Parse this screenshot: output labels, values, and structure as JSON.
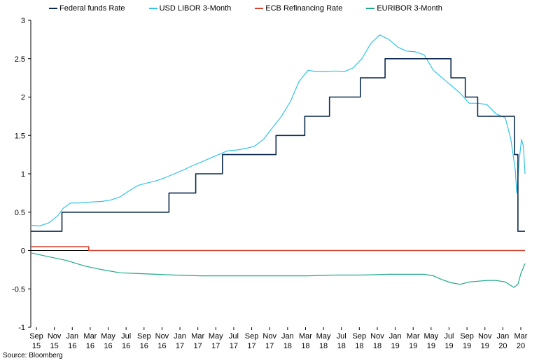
{
  "chart_data": {
    "type": "line",
    "ylim": [
      -1,
      3
    ],
    "yticks": [
      "3",
      "2.5",
      "2",
      "1.5",
      "1",
      "0.5",
      "0",
      "-0.5",
      "-1"
    ],
    "xtick_labels": [
      [
        "Sep",
        "15"
      ],
      [
        "Nov",
        "15"
      ],
      [
        "Jan",
        "16"
      ],
      [
        "Mar",
        "16"
      ],
      [
        "May",
        "16"
      ],
      [
        "Jul",
        "16"
      ],
      [
        "Sep",
        "16"
      ],
      [
        "Nov",
        "16"
      ],
      [
        "Jan",
        "17"
      ],
      [
        "Mar",
        "17"
      ],
      [
        "May",
        "17"
      ],
      [
        "Jul",
        "17"
      ],
      [
        "Sep",
        "17"
      ],
      [
        "Nov",
        "17"
      ],
      [
        "Jan",
        "18"
      ],
      [
        "Mar",
        "18"
      ],
      [
        "May",
        "18"
      ],
      [
        "Jul",
        "18"
      ],
      [
        "Sep",
        "18"
      ],
      [
        "Nov",
        "18"
      ],
      [
        "Jan",
        "19"
      ],
      [
        "Mar",
        "19"
      ],
      [
        "May",
        "19"
      ],
      [
        "Jul",
        "19"
      ],
      [
        "Sep",
        "19"
      ],
      [
        "Nov",
        "19"
      ],
      [
        "Jan",
        "20"
      ],
      [
        "Mar",
        "20"
      ]
    ],
    "legend_position": "top",
    "grid": false,
    "series": [
      {
        "name": "Federal funds Rate",
        "color": "#0b2a4f",
        "step": true,
        "points": [
          [
            "2015-09-01",
            0.25
          ],
          [
            "2015-12-16",
            0.5
          ],
          [
            "2016-12-14",
            0.75
          ],
          [
            "2017-03-15",
            1.0
          ],
          [
            "2017-06-14",
            1.25
          ],
          [
            "2017-12-13",
            1.5
          ],
          [
            "2018-03-21",
            1.75
          ],
          [
            "2018-06-13",
            2.0
          ],
          [
            "2018-09-26",
            2.25
          ],
          [
            "2018-12-19",
            2.5
          ],
          [
            "2019-07-31",
            2.25
          ],
          [
            "2019-09-18",
            2.0
          ],
          [
            "2019-10-30",
            1.75
          ],
          [
            "2020-03-03",
            1.25
          ],
          [
            "2020-03-15",
            0.25
          ],
          [
            "2020-04-08",
            0.25
          ]
        ]
      },
      {
        "name": "USD LIBOR 3-Month",
        "color": "#33c3e8",
        "step": false,
        "points": [
          [
            "2015-09-01",
            0.33
          ],
          [
            "2015-10-01",
            0.32
          ],
          [
            "2015-11-01",
            0.36
          ],
          [
            "2015-12-01",
            0.45
          ],
          [
            "2015-12-20",
            0.55
          ],
          [
            "2016-01-15",
            0.62
          ],
          [
            "2016-02-15",
            0.62
          ],
          [
            "2016-03-15",
            0.63
          ],
          [
            "2016-05-01",
            0.64
          ],
          [
            "2016-06-01",
            0.66
          ],
          [
            "2016-07-01",
            0.7
          ],
          [
            "2016-08-01",
            0.78
          ],
          [
            "2016-09-01",
            0.85
          ],
          [
            "2016-10-01",
            0.88
          ],
          [
            "2016-11-01",
            0.91
          ],
          [
            "2016-12-01",
            0.95
          ],
          [
            "2017-01-01",
            1.0
          ],
          [
            "2017-02-01",
            1.05
          ],
          [
            "2017-03-01",
            1.1
          ],
          [
            "2017-04-01",
            1.15
          ],
          [
            "2017-05-01",
            1.2
          ],
          [
            "2017-06-01",
            1.25
          ],
          [
            "2017-07-01",
            1.3
          ],
          [
            "2017-08-01",
            1.31
          ],
          [
            "2017-09-01",
            1.33
          ],
          [
            "2017-10-01",
            1.36
          ],
          [
            "2017-11-01",
            1.45
          ],
          [
            "2017-12-01",
            1.6
          ],
          [
            "2018-01-01",
            1.75
          ],
          [
            "2018-02-01",
            1.95
          ],
          [
            "2018-03-01",
            2.2
          ],
          [
            "2018-04-01",
            2.35
          ],
          [
            "2018-05-01",
            2.33
          ],
          [
            "2018-06-01",
            2.33
          ],
          [
            "2018-07-01",
            2.34
          ],
          [
            "2018-08-01",
            2.33
          ],
          [
            "2018-09-01",
            2.38
          ],
          [
            "2018-10-01",
            2.5
          ],
          [
            "2018-11-01",
            2.7
          ],
          [
            "2018-12-01",
            2.81
          ],
          [
            "2019-01-01",
            2.75
          ],
          [
            "2019-02-01",
            2.65
          ],
          [
            "2019-03-01",
            2.6
          ],
          [
            "2019-04-01",
            2.59
          ],
          [
            "2019-05-01",
            2.55
          ],
          [
            "2019-06-01",
            2.35
          ],
          [
            "2019-07-01",
            2.25
          ],
          [
            "2019-08-01",
            2.15
          ],
          [
            "2019-09-01",
            2.05
          ],
          [
            "2019-10-01",
            1.92
          ],
          [
            "2019-11-01",
            1.92
          ],
          [
            "2019-12-01",
            1.9
          ],
          [
            "2020-01-01",
            1.78
          ],
          [
            "2020-02-01",
            1.73
          ],
          [
            "2020-02-20",
            1.45
          ],
          [
            "2020-03-06",
            1.05
          ],
          [
            "2020-03-11",
            0.75
          ],
          [
            "2020-03-20",
            1.2
          ],
          [
            "2020-03-27",
            1.45
          ],
          [
            "2020-04-03",
            1.35
          ],
          [
            "2020-04-08",
            1.0
          ]
        ]
      },
      {
        "name": "ECB Refinancing Rate",
        "color": "#d6432e",
        "step": true,
        "points": [
          [
            "2015-09-01",
            0.05
          ],
          [
            "2016-03-16",
            0.0
          ],
          [
            "2020-04-08",
            0.0
          ]
        ]
      },
      {
        "name": "EURIBOR 3-Month",
        "color": "#1fa98a",
        "step": false,
        "points": [
          [
            "2015-09-01",
            -0.03
          ],
          [
            "2015-11-01",
            -0.08
          ],
          [
            "2016-01-01",
            -0.13
          ],
          [
            "2016-03-01",
            -0.2
          ],
          [
            "2016-05-01",
            -0.25
          ],
          [
            "2016-07-01",
            -0.29
          ],
          [
            "2016-09-01",
            -0.3
          ],
          [
            "2016-11-01",
            -0.31
          ],
          [
            "2017-01-01",
            -0.32
          ],
          [
            "2017-04-01",
            -0.33
          ],
          [
            "2017-07-01",
            -0.33
          ],
          [
            "2017-10-01",
            -0.33
          ],
          [
            "2018-01-01",
            -0.33
          ],
          [
            "2018-04-01",
            -0.33
          ],
          [
            "2018-07-01",
            -0.32
          ],
          [
            "2018-10-01",
            -0.32
          ],
          [
            "2019-01-01",
            -0.31
          ],
          [
            "2019-03-01",
            -0.31
          ],
          [
            "2019-05-01",
            -0.31
          ],
          [
            "2019-06-01",
            -0.33
          ],
          [
            "2019-07-01",
            -0.38
          ],
          [
            "2019-08-01",
            -0.42
          ],
          [
            "2019-09-01",
            -0.44
          ],
          [
            "2019-10-01",
            -0.41
          ],
          [
            "2019-12-01",
            -0.39
          ],
          [
            "2020-01-01",
            -0.39
          ],
          [
            "2020-02-01",
            -0.41
          ],
          [
            "2020-03-01",
            -0.48
          ],
          [
            "2020-03-15",
            -0.44
          ],
          [
            "2020-03-25",
            -0.3
          ],
          [
            "2020-04-08",
            -0.17
          ]
        ]
      }
    ]
  },
  "source": "Source: Bloomberg"
}
